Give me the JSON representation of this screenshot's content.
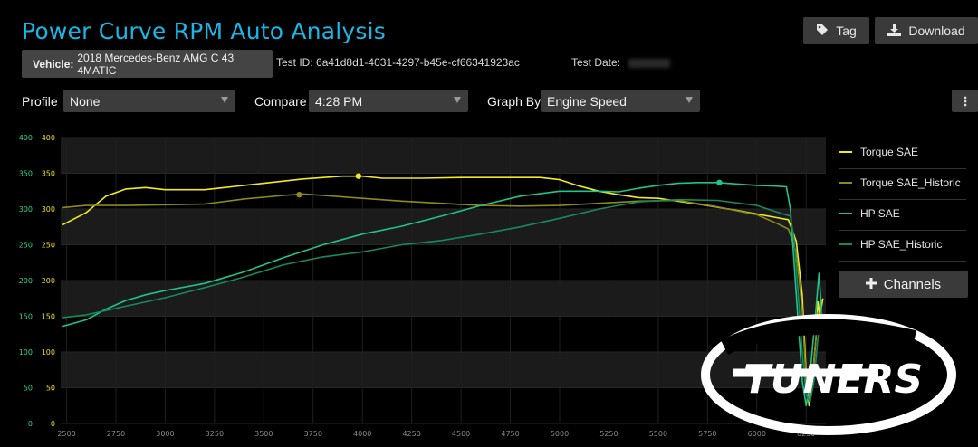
{
  "header": {
    "title": "Power Curve RPM Auto Analysis",
    "tag_label": "Tag",
    "download_label": "Download"
  },
  "info": {
    "vehicle_label": "Vehicle:",
    "vehicle_value": "2018 Mercedes-Benz AMG C 43 4MATIC",
    "test_id_label": "Test ID:",
    "test_id_value": "6a41d8d1-4031-4297-b45e-cf66341923ac",
    "test_date_label": "Test Date:"
  },
  "controls": {
    "profile_label": "Profile",
    "profile_value": "None",
    "compare_label": "Compare",
    "compare_value": "4:28 PM",
    "graph_by_label": "Graph By",
    "graph_by_value": "Engine Speed"
  },
  "channels_label": "Channels",
  "watermark": "TUNERS",
  "chart_data": {
    "type": "line",
    "xlim": [
      2470,
      6350
    ],
    "ylim": [
      0,
      400
    ],
    "x_ticks": [
      2500,
      2750,
      3000,
      3250,
      3500,
      3750,
      4000,
      4250,
      4500,
      4750,
      5000,
      5250,
      5500,
      5750,
      6000,
      6250
    ],
    "y_ticks": [
      0,
      50,
      100,
      150,
      200,
      250,
      300,
      350,
      400
    ],
    "grid": true,
    "legend_position": "right",
    "series": [
      {
        "name": "Torque SAE",
        "color": "#f2ea1e",
        "x": [
          2480,
          2600,
          2700,
          2800,
          2900,
          3000,
          3100,
          3200,
          3300,
          3500,
          3700,
          3900,
          4000,
          4100,
          4300,
          4500,
          4700,
          4900,
          5000,
          5100,
          5200,
          5300,
          5400,
          5500,
          5700,
          5900,
          6100,
          6160,
          6200,
          6230,
          6250,
          6265,
          6280,
          6300,
          6310,
          6320,
          6335
        ],
        "y": [
          278,
          295,
          318,
          328,
          330,
          327,
          327,
          327,
          330,
          336,
          342,
          346,
          346,
          343,
          343,
          344,
          344,
          344,
          341,
          332,
          325,
          320,
          316,
          315,
          307,
          298,
          288,
          285,
          255,
          180,
          70,
          25,
          55,
          120,
          170,
          150,
          175
        ],
        "marker": {
          "x": 3980,
          "y": 346
        }
      },
      {
        "name": "Torque SAE_Historic",
        "color": "#8c8a1c",
        "x": [
          2480,
          2600,
          2800,
          3000,
          3200,
          3400,
          3600,
          3700,
          3800,
          4000,
          4200,
          4400,
          4600,
          4800,
          5000,
          5200,
          5400,
          5600,
          5800,
          6000,
          6100,
          6160,
          6200,
          6230,
          6250,
          6265,
          6280,
          6300,
          6310,
          6325,
          6335
        ],
        "y": [
          302,
          305,
          305,
          306,
          307,
          314,
          319,
          321,
          319,
          315,
          311,
          308,
          305,
          304,
          305,
          308,
          311,
          312,
          303,
          292,
          280,
          272,
          240,
          160,
          60,
          35,
          60,
          120,
          155,
          130,
          145
        ],
        "marker": {
          "x": 3680,
          "y": 320
        }
      },
      {
        "name": "HP SAE",
        "color": "#1fc48a",
        "x": [
          2480,
          2600,
          2700,
          2800,
          2900,
          3000,
          3200,
          3400,
          3600,
          3800,
          4000,
          4200,
          4400,
          4600,
          4800,
          5000,
          5200,
          5300,
          5400,
          5500,
          5600,
          5700,
          5800,
          6000,
          6100,
          6150,
          6170,
          6190,
          6210,
          6230,
          6250,
          6260,
          6280,
          6300,
          6315,
          6330
        ],
        "y": [
          136,
          145,
          160,
          172,
          180,
          186,
          196,
          212,
          232,
          250,
          265,
          276,
          290,
          305,
          318,
          325,
          325,
          324,
          329,
          333,
          336,
          337,
          337,
          333,
          332,
          331,
          300,
          220,
          140,
          60,
          25,
          40,
          100,
          160,
          210,
          150
        ],
        "marker": {
          "x": 5810,
          "y": 337
        }
      },
      {
        "name": "HP SAE_Historic",
        "color": "#168a5e",
        "x": [
          2480,
          2600,
          2800,
          3000,
          3200,
          3400,
          3600,
          3800,
          4000,
          4200,
          4400,
          4600,
          4800,
          5000,
          5200,
          5400,
          5600,
          5800,
          6000,
          6100,
          6170,
          6190,
          6210,
          6230,
          6250,
          6270,
          6290,
          6310,
          6330
        ],
        "y": [
          148,
          152,
          164,
          176,
          190,
          205,
          222,
          233,
          240,
          250,
          256,
          265,
          275,
          287,
          300,
          310,
          313,
          312,
          305,
          296,
          290,
          255,
          180,
          100,
          40,
          30,
          60,
          120,
          160
        ]
      }
    ]
  }
}
